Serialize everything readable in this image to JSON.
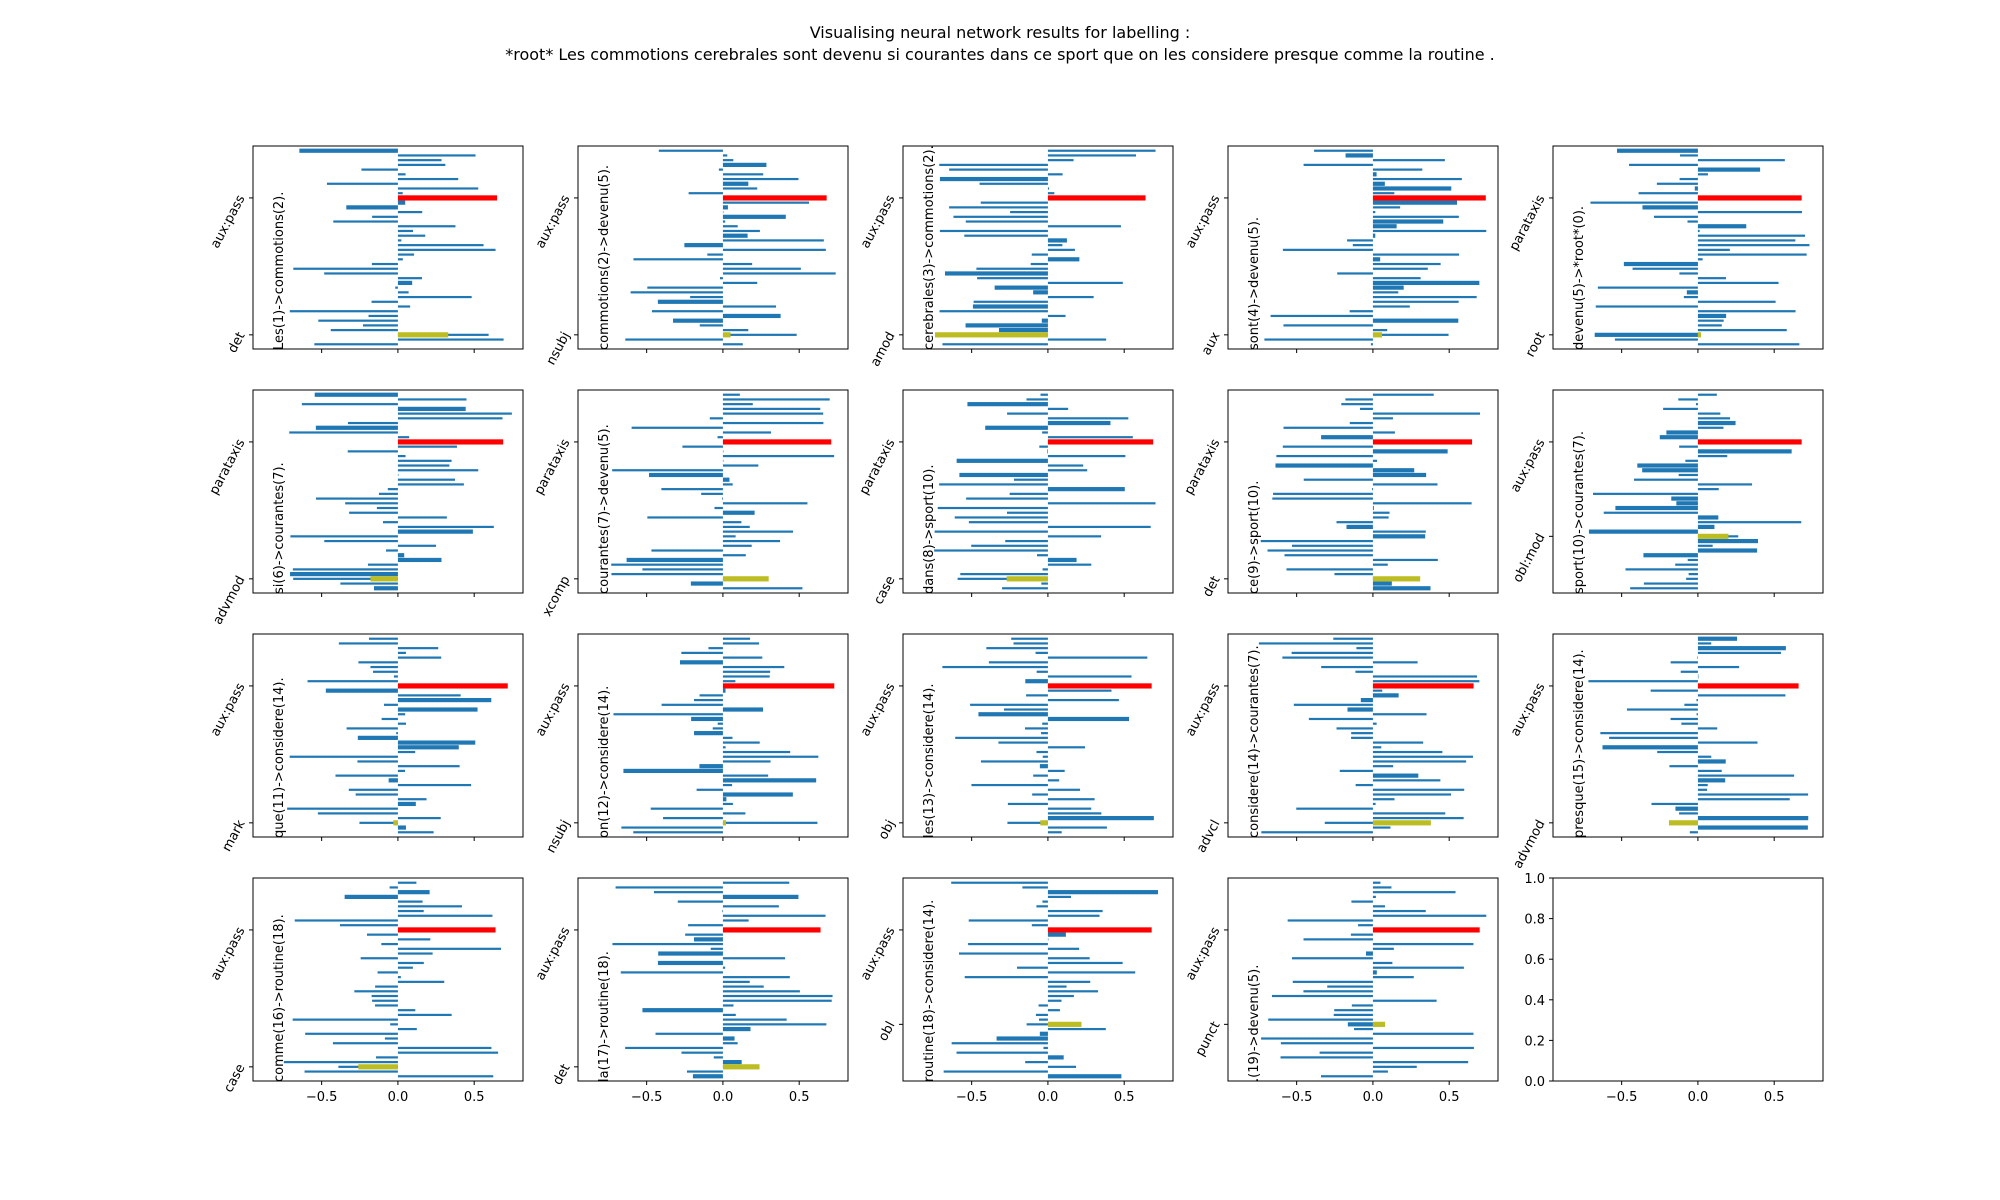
{
  "title_line1": "Visualising neural network results for labelling :",
  "title_line2": "*root* Les commotions cerebrales sont devenu si courantes dans ce sport que on les considere presque comme la routine .",
  "colors": {
    "bars": "#1f77b4",
    "highlight": "#ff0000",
    "secondary": "#bcbd22"
  },
  "chart_data": {
    "type": "bar",
    "orientation": "horizontal",
    "xlim": [
      -0.95,
      0.82
    ],
    "x_ticks": [
      "−0.5",
      "0.0",
      "0.5"
    ],
    "x_tick_values": [
      -0.5,
      0.0,
      0.5
    ],
    "empty_panel_y_ticks": [
      "0.0",
      "0.2",
      "0.4",
      "0.6",
      "0.8",
      "1.0"
    ],
    "panels": [
      {
        "arc": "Les(1)->commotions(2).",
        "top_label": "aux:pass",
        "bottom_label": "det",
        "red_value": 0.65,
        "yellow_value": 0.33,
        "yellow_bottom": true
      },
      {
        "arc": "commotions(2)->devenu(5).",
        "top_label": "aux:pass",
        "bottom_label": "nsubj",
        "red_value": 0.68,
        "yellow_value": 0.05,
        "yellow_bottom": true
      },
      {
        "arc": "cerebrales(3)->commotions(2).",
        "top_label": "aux:pass",
        "bottom_label": "amod",
        "red_value": 0.64,
        "yellow_value": -0.74,
        "yellow_bottom": true
      },
      {
        "arc": "sont(4)->devenu(5).",
        "top_label": "aux:pass",
        "bottom_label": "aux",
        "red_value": 0.74,
        "yellow_value": 0.06,
        "yellow_bottom": true
      },
      {
        "arc": "devenu(5)->*root*(0).",
        "top_label": "parataxis",
        "bottom_label": "root",
        "red_value": 0.68,
        "yellow_value": 0.02,
        "yellow_bottom": true
      },
      {
        "arc": "si(6)->courantes(7).",
        "top_label": "parataxis",
        "bottom_label": "advmod",
        "red_value": 0.69,
        "yellow_value": -0.18,
        "yellow_bottom": true
      },
      {
        "arc": "courantes(7)->devenu(5).",
        "top_label": "parataxis",
        "bottom_label": "xcomp",
        "red_value": 0.71,
        "yellow_value": 0.3,
        "yellow_bottom": true
      },
      {
        "arc": "dans(8)->sport(10).",
        "top_label": "parataxis",
        "bottom_label": "case",
        "red_value": 0.69,
        "yellow_value": -0.27,
        "yellow_bottom": true
      },
      {
        "arc": "ce(9)->sport(10).",
        "top_label": "parataxis",
        "bottom_label": "det",
        "red_value": 0.65,
        "yellow_value": 0.31,
        "yellow_bottom": true
      },
      {
        "arc": "sport(10)->courantes(7).",
        "top_label": "aux:pass",
        "bottom_label": "obl:mod",
        "red_value": 0.68,
        "yellow_value": 0.2,
        "yellow_bottom": false
      },
      {
        "arc": "que(11)->considere(14).",
        "top_label": "aux:pass",
        "bottom_label": "mark",
        "red_value": 0.72,
        "yellow_value": -0.03,
        "yellow_bottom": true
      },
      {
        "arc": "on(12)->considere(14).",
        "top_label": "aux:pass",
        "bottom_label": "nsubj",
        "red_value": 0.73,
        "yellow_value": 0.02,
        "yellow_bottom": true
      },
      {
        "arc": "les(13)->considere(14).",
        "top_label": "aux:pass",
        "bottom_label": "obj",
        "red_value": 0.68,
        "yellow_value": -0.05,
        "yellow_bottom": true
      },
      {
        "arc": "considere(14)->courantes(7).",
        "top_label": "aux:pass",
        "bottom_label": "advcl",
        "red_value": 0.66,
        "yellow_value": 0.38,
        "yellow_bottom": true
      },
      {
        "arc": "presque(15)->considere(14).",
        "top_label": "aux:pass",
        "bottom_label": "advmod",
        "red_value": 0.66,
        "yellow_value": -0.19,
        "yellow_bottom": true
      },
      {
        "arc": "comme(16)->routine(18).",
        "top_label": "aux:pass",
        "bottom_label": "case",
        "red_value": 0.64,
        "yellow_value": -0.26,
        "yellow_bottom": true
      },
      {
        "arc": "la(17)->routine(18).",
        "top_label": "aux:pass",
        "bottom_label": "det",
        "red_value": 0.64,
        "yellow_value": 0.24,
        "yellow_bottom": true
      },
      {
        "arc": "routine(18)->considere(14).",
        "top_label": "aux:pass",
        "bottom_label": "obl",
        "red_value": 0.68,
        "yellow_value": 0.22,
        "yellow_bottom": false
      },
      {
        "arc": ".(19)->devenu(5).",
        "top_label": "aux:pass",
        "bottom_label": "punct",
        "red_value": 0.7,
        "yellow_value": 0.08,
        "yellow_bottom": false
      }
    ]
  }
}
